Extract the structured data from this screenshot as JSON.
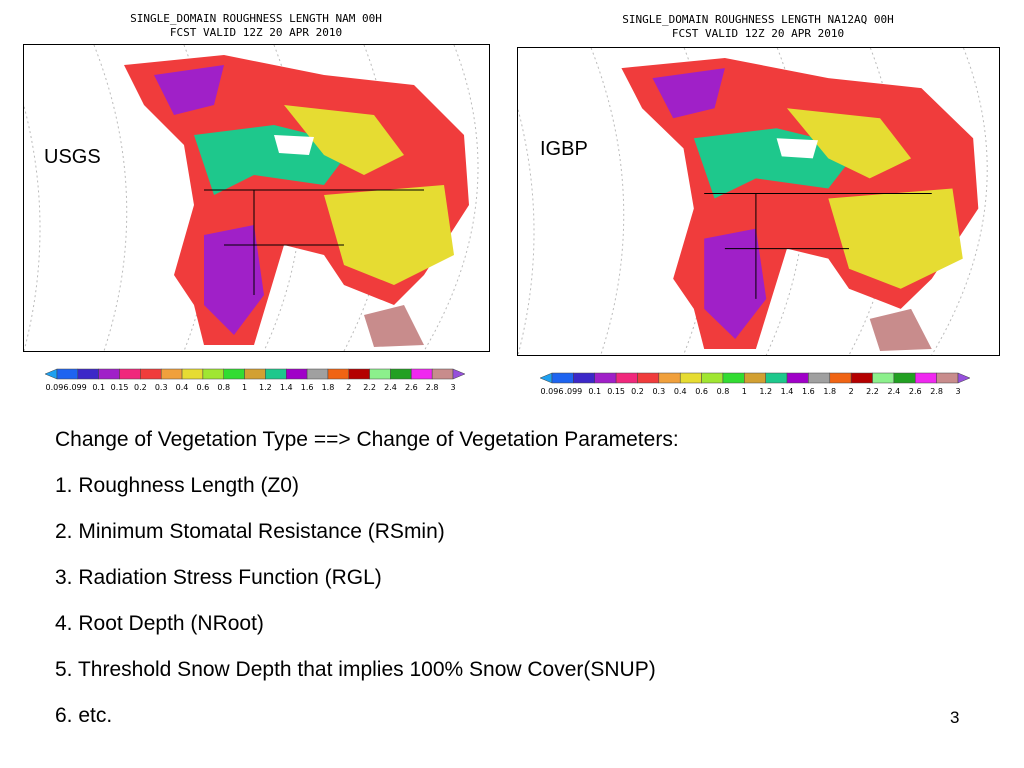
{
  "panels": [
    {
      "title_line1": "SINGLE_DOMAIN ROUGHNESS LENGTH NAM 00H",
      "title_line2": "FCST VALID 12Z 20 APR 2010",
      "label": "USGS"
    },
    {
      "title_line1": "SINGLE_DOMAIN ROUGHNESS LENGTH NA12AQ 00H",
      "title_line2": "FCST VALID 12Z 20 APR 2010",
      "label": "IGBP"
    }
  ],
  "colorbar": {
    "labels": [
      "0.096",
      ".099",
      "0.1",
      "0.15",
      "0.2",
      "0.3",
      "0.4",
      "0.6",
      "0.8",
      "1",
      "1.2",
      "1.4",
      "1.6",
      "1.8",
      "2",
      "2.2",
      "2.4",
      "2.6",
      "2.8",
      "3"
    ],
    "colors": [
      "#1ea0f0",
      "#1e64f0",
      "#3c28c8",
      "#a020c8",
      "#f0287c",
      "#f03c3c",
      "#f0a03c",
      "#e6dc32",
      "#a0e632",
      "#32dc32",
      "#d2a032",
      "#1ec88c",
      "#a000c8",
      "#a0a0a0",
      "#f06414",
      "#b40000",
      "#8cf08c",
      "#22a022",
      "#f028f0",
      "#c88c8c",
      "#9650dc"
    ]
  },
  "text": {
    "heading": "Change of Vegetation Type ==> Change of Vegetation Parameters:",
    "items": [
      "1. Roughness Length (Z0)",
      "2. Minimum Stomatal Resistance (RSmin)",
      "3. Radiation Stress Function (RGL)",
      "4. Root Depth (NRoot)",
      "5. Threshold Snow Depth that implies 100% Snow Cover(SNUP)",
      "6. etc."
    ]
  },
  "page_number": "3"
}
